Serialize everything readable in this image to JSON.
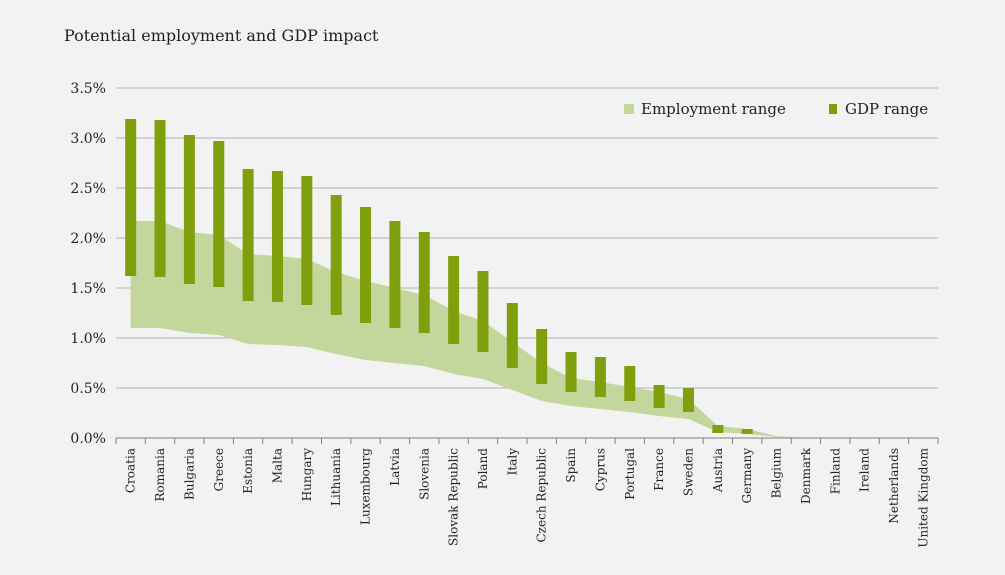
{
  "chart_data": {
    "type": "area",
    "title": "Potential employment and GDP impact",
    "xlabel": "",
    "ylabel": "",
    "ylim": [
      0,
      3.5
    ],
    "yticks": [
      "0.0%",
      "0.5%",
      "1.0%",
      "1.5%",
      "2.0%",
      "2.5%",
      "3.0%",
      "3.5%"
    ],
    "grid": true,
    "legend_position": "top-right",
    "categories": [
      "Croatia",
      "Romania",
      "Bulgaria",
      "Greece",
      "Estonia",
      "Malta",
      "Hungary",
      "Lithuania",
      "Luxembourg",
      "Latvia",
      "Slovenia",
      "Slovak Republic",
      "Poland",
      "Italy",
      "Czech Republic",
      "Spain",
      "Cyprus",
      "Portugal",
      "France",
      "Sweden",
      "Austria",
      "Germany",
      "Belgium",
      "Denmark",
      "Finland",
      "Ireland",
      "Netherlands",
      "United Kingdom"
    ],
    "series": [
      {
        "name": "Employment range",
        "kind": "area-band",
        "color": "#c3d69b",
        "low": [
          1.1,
          1.1,
          1.05,
          1.03,
          0.94,
          0.93,
          0.91,
          0.84,
          0.78,
          0.75,
          0.72,
          0.64,
          0.59,
          0.48,
          0.37,
          0.32,
          0.29,
          0.26,
          0.22,
          0.19,
          0.06,
          0.04,
          0.01,
          0,
          0,
          0,
          0,
          0
        ],
        "high": [
          2.17,
          2.17,
          2.06,
          2.03,
          1.84,
          1.82,
          1.79,
          1.66,
          1.57,
          1.5,
          1.43,
          1.27,
          1.17,
          0.96,
          0.75,
          0.6,
          0.56,
          0.51,
          0.46,
          0.39,
          0.12,
          0.09,
          0.02,
          0,
          0,
          0,
          0,
          0
        ]
      },
      {
        "name": "GDP range",
        "kind": "floating-bar",
        "color": "#7f9f0c",
        "low": [
          1.62,
          1.61,
          1.54,
          1.51,
          1.37,
          1.36,
          1.33,
          1.23,
          1.15,
          1.1,
          1.05,
          0.94,
          0.86,
          0.7,
          0.54,
          0.46,
          0.41,
          0.37,
          0.3,
          0.26,
          0.05,
          0.04,
          0,
          0,
          0,
          0,
          0,
          0
        ],
        "high": [
          3.19,
          3.18,
          3.03,
          2.97,
          2.69,
          2.67,
          2.62,
          2.43,
          2.31,
          2.17,
          2.06,
          1.82,
          1.67,
          1.35,
          1.09,
          0.86,
          0.81,
          0.72,
          0.53,
          0.5,
          0.13,
          0.09,
          0,
          0,
          0,
          0,
          0,
          0
        ]
      }
    ]
  },
  "colors": {
    "background": "#f2f2f2",
    "grid": "#b3b3b3",
    "axis": "#7f7f7f"
  }
}
